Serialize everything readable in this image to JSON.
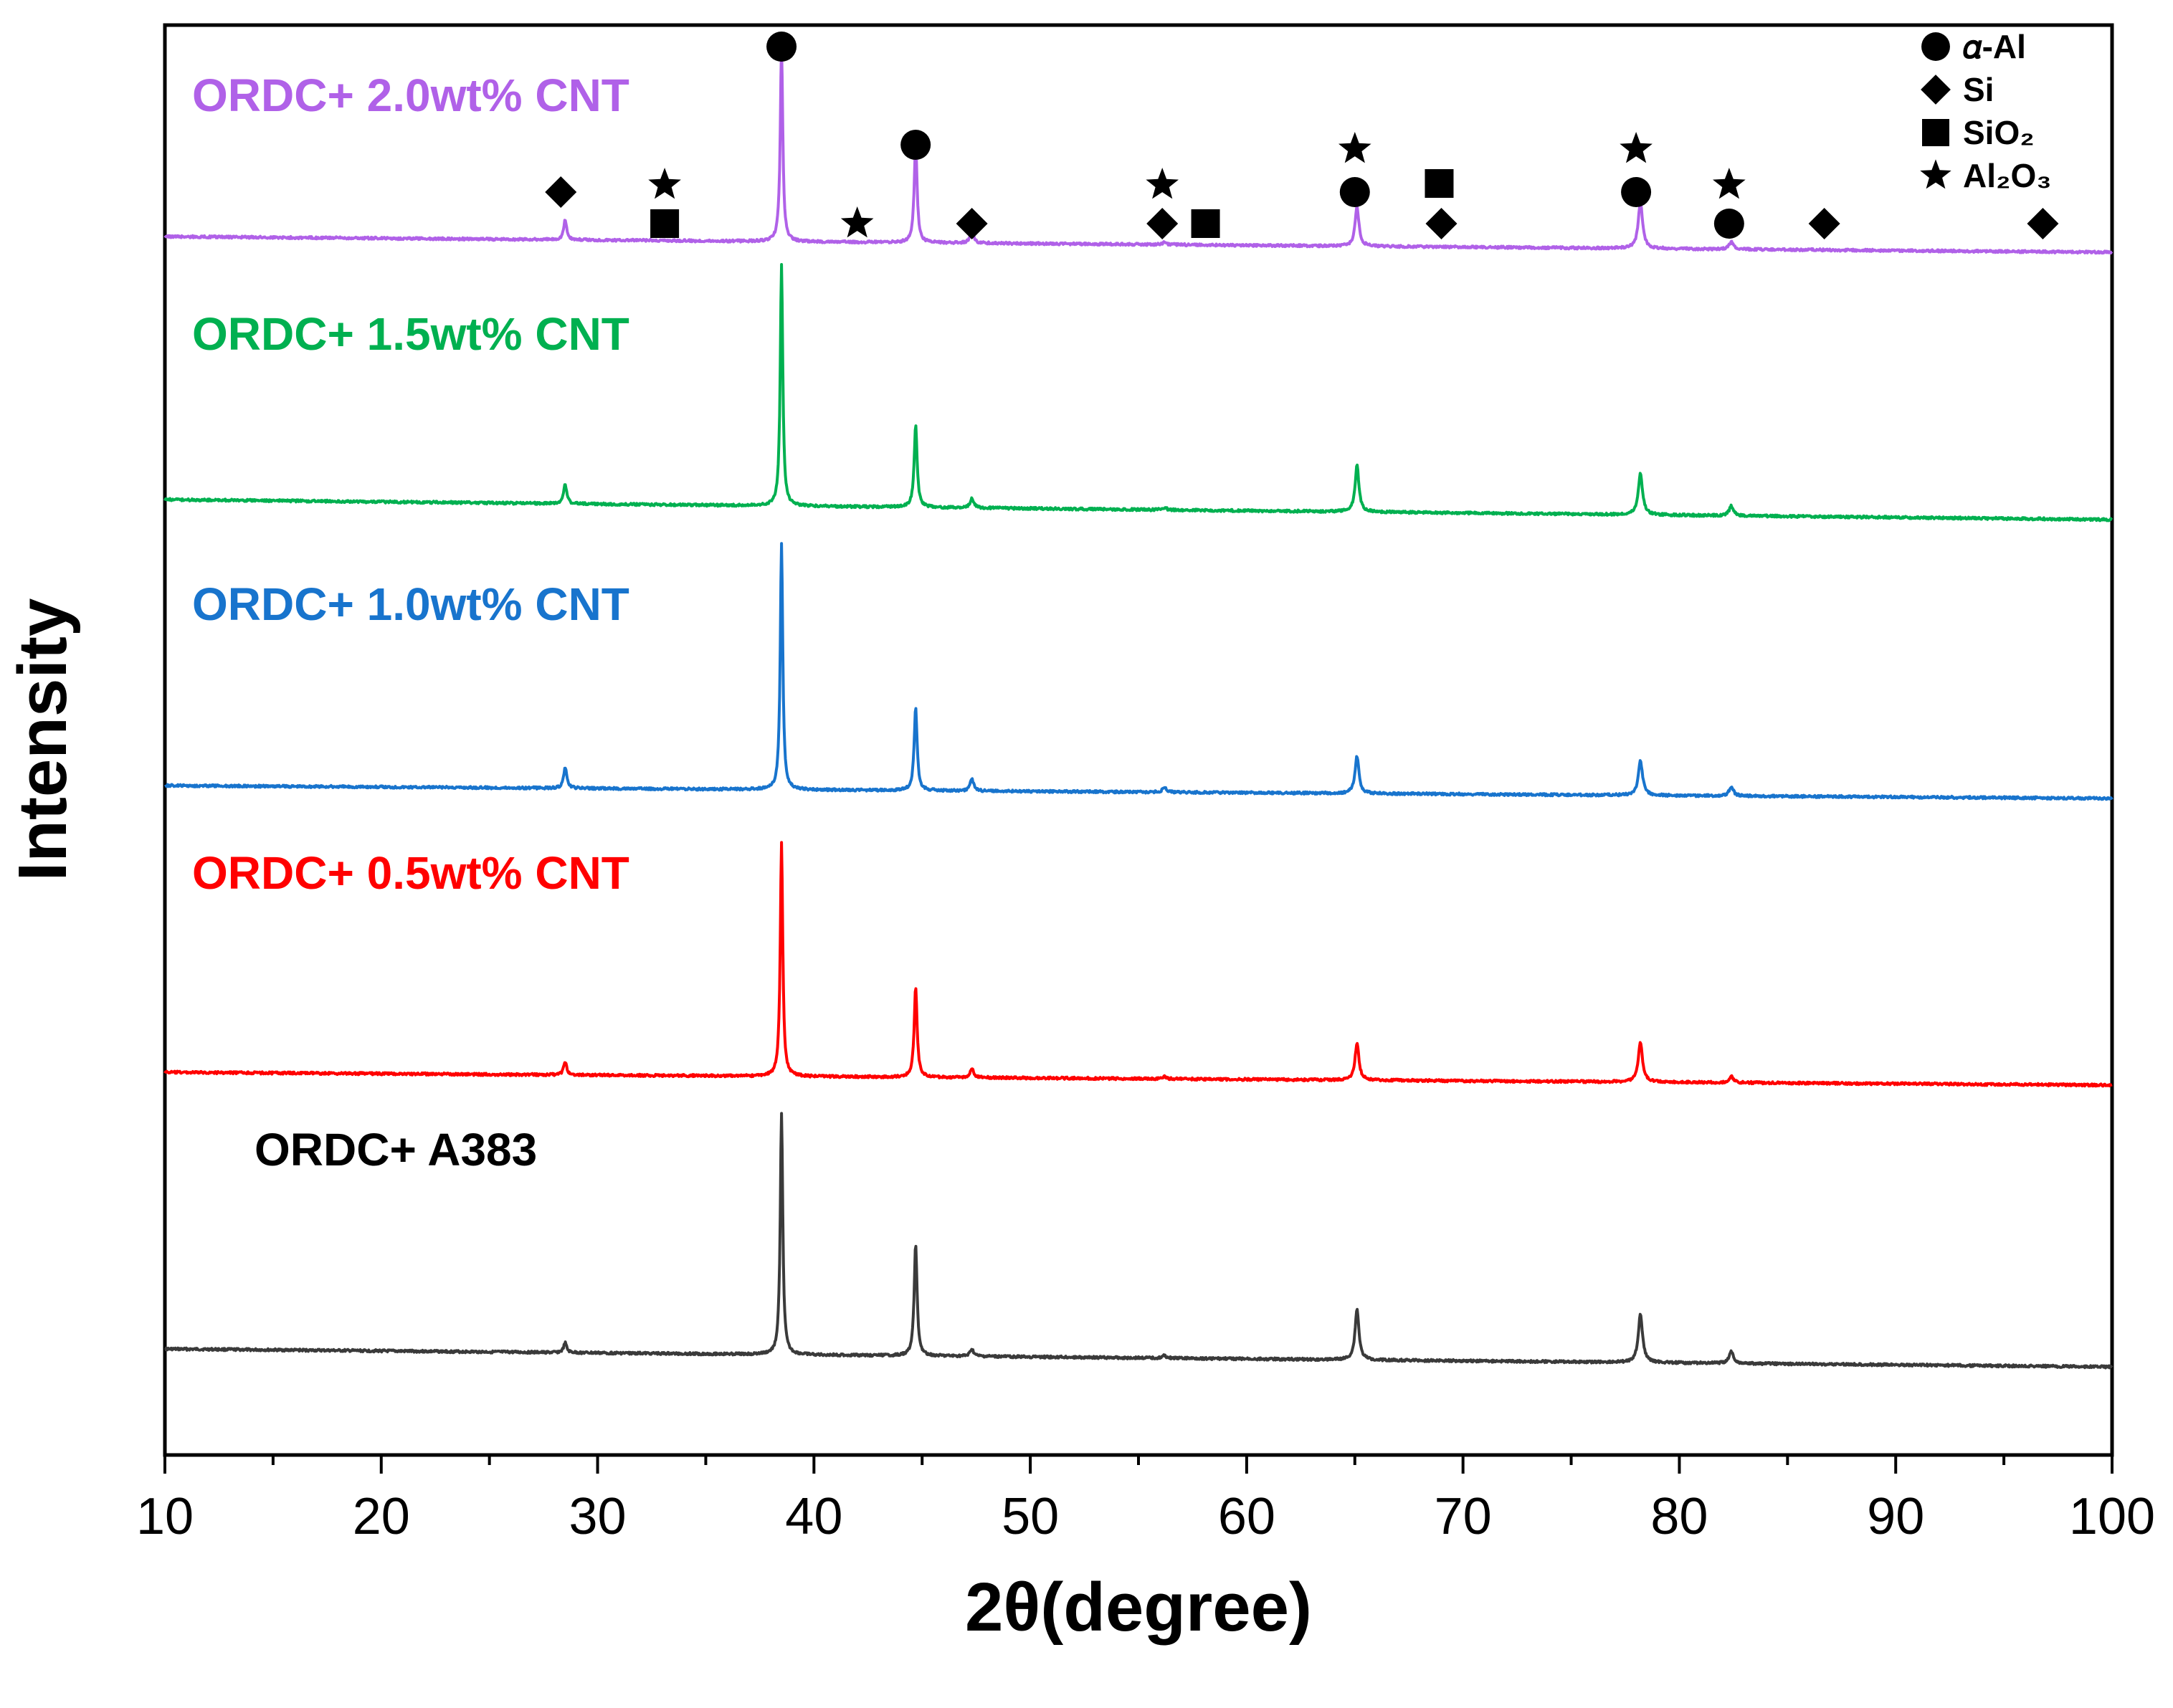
{
  "chart_data": {
    "type": "line",
    "title": "",
    "xlabel": "2θ(degree)",
    "ylabel": "Intensity",
    "xlim": [
      10,
      100
    ],
    "x_ticks": [
      10,
      20,
      30,
      40,
      50,
      60,
      70,
      80,
      90,
      100
    ],
    "x_tick_labels": [
      "10",
      "20",
      "30",
      "40",
      "50",
      "60",
      "70",
      "80",
      "90",
      "100"
    ],
    "y_ticks": false,
    "grid": false,
    "legend_position": "top-right",
    "peak_positions": [
      28.5,
      38.5,
      44.7,
      47.3,
      56.2,
      65.1,
      78.2,
      82.4
    ],
    "series": [
      {
        "name": "ORDC+ A383",
        "color": "#3a3a3a",
        "offset": 0,
        "baseline_start": 12,
        "baseline_end": 0,
        "peak_heights": [
          4,
          100,
          46,
          3,
          1,
          21,
          20,
          5
        ]
      },
      {
        "name": "ORDC+ 0.5wt% CNT",
        "color": "#ff0000",
        "offset": 1,
        "baseline_start": 7,
        "baseline_end": 0,
        "peak_heights": [
          6,
          106,
          41,
          4,
          1,
          17,
          18,
          3
        ]
      },
      {
        "name": "ORDC+ 1.0wt% CNT",
        "color": "#1874cd",
        "offset": 2,
        "baseline_start": 6,
        "baseline_end": 0,
        "peak_heights": [
          9,
          106,
          36,
          5,
          2,
          16,
          15,
          4
        ]
      },
      {
        "name": "ORDC+ 1.5wt% CNT",
        "color": "#00b050",
        "offset": 3,
        "baseline_start": 7,
        "baseline_end": 0,
        "peak_heights": [
          8,
          99,
          34,
          4,
          1,
          19,
          17,
          4
        ]
      },
      {
        "name": "ORDC+ 2.0wt% CNT",
        "color": "#b061e8",
        "offset": 4,
        "baseline_start": 6,
        "baseline_end": 0,
        "peak_heights": [
          8,
          79,
          40,
          5,
          1,
          16,
          19,
          3
        ]
      }
    ],
    "legend": [
      {
        "symbol": "circle",
        "text": "𝛼-Al"
      },
      {
        "symbol": "diamond",
        "text": "Si"
      },
      {
        "symbol": "square",
        "text": "SiO₂"
      },
      {
        "symbol": "star",
        "text": "Al₂O₃"
      }
    ],
    "phase_markers": [
      {
        "symbol": "circle",
        "x": 38.5,
        "level": 3
      },
      {
        "symbol": "circle",
        "x": 44.7,
        "level": 2
      },
      {
        "symbol": "circle",
        "x": 65.0,
        "level": 1
      },
      {
        "symbol": "circle",
        "x": 78.0,
        "level": 1
      },
      {
        "symbol": "circle",
        "x": 82.3,
        "level": 0
      },
      {
        "symbol": "diamond",
        "x": 28.3,
        "level": 1
      },
      {
        "symbol": "diamond",
        "x": 47.3,
        "level": 0
      },
      {
        "symbol": "diamond",
        "x": 56.1,
        "level": 0
      },
      {
        "symbol": "diamond",
        "x": 69.0,
        "level": 0
      },
      {
        "symbol": "diamond",
        "x": 86.7,
        "level": 0
      },
      {
        "symbol": "diamond",
        "x": 96.8,
        "level": 0
      },
      {
        "symbol": "square",
        "x": 33.1,
        "level": 0
      },
      {
        "symbol": "square",
        "x": 58.1,
        "level": 0
      },
      {
        "symbol": "square",
        "x": 68.9,
        "level": 1
      },
      {
        "symbol": "star",
        "x": 33.1,
        "level": 1
      },
      {
        "symbol": "star",
        "x": 42.0,
        "level": 0
      },
      {
        "symbol": "star",
        "x": 56.1,
        "level": 1
      },
      {
        "symbol": "star",
        "x": 65.0,
        "level": 2
      },
      {
        "symbol": "star",
        "x": 78.0,
        "level": 2
      },
      {
        "symbol": "star",
        "x": 82.3,
        "level": 1
      }
    ]
  }
}
